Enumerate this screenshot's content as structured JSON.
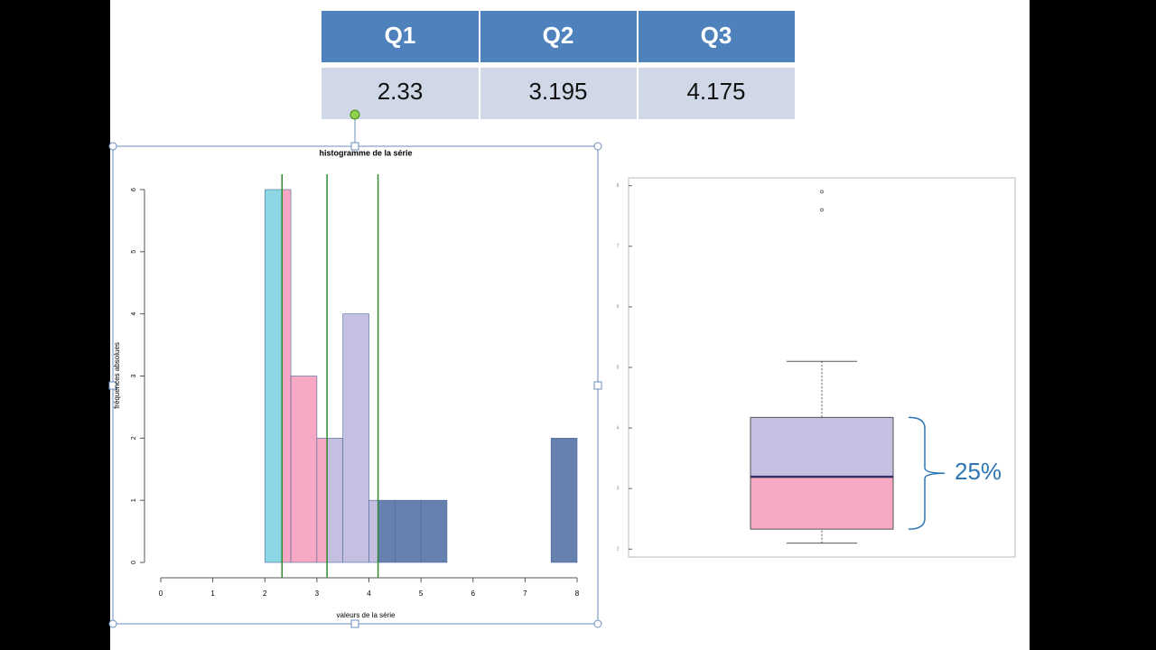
{
  "table": {
    "headers": [
      "Q1",
      "Q2",
      "Q3"
    ]
  },
  "chart_data": [
    {
      "type": "histogram",
      "title": "histogramme de la série",
      "x_label": "valeurs de la série",
      "y_label": "fréquences absolues",
      "bins": [
        2,
        2.5,
        3,
        3.5,
        4,
        4.5,
        5,
        5.5,
        6,
        6.5,
        7,
        7.5,
        8
      ],
      "values": [
        6,
        3,
        2,
        4,
        1,
        1,
        1,
        0,
        0,
        0,
        0,
        2
      ],
      "region_colors": [
        "#8dd6e3",
        "#f6a8c4",
        "#c5bfe2",
        "#6680b0"
      ],
      "line_color": "#2e8b2e",
      "xlim": [
        0,
        8
      ],
      "xticks": [
        0,
        1,
        2,
        3,
        4,
        5,
        6,
        7,
        8
      ],
      "ylim": [
        0,
        6
      ],
      "yticks": [
        0,
        1,
        2,
        3,
        4,
        5,
        6
      ]
    },
    {
      "type": "boxplot",
      "whisker_low": 2.1,
      "q1": 2.33,
      "median": 3.195,
      "q3": 4.175,
      "whisker_high": 5.1,
      "outliers": [
        7.6,
        7.9
      ],
      "lower_color": "#f7a8c4",
      "upper_color": "#c5bfe2",
      "median_color": "#333366",
      "ylim": [
        1.87,
        8.13
      ],
      "yticks": [
        2,
        3,
        4,
        5,
        6,
        7,
        8
      ],
      "annotation": "25%"
    }
  ]
}
